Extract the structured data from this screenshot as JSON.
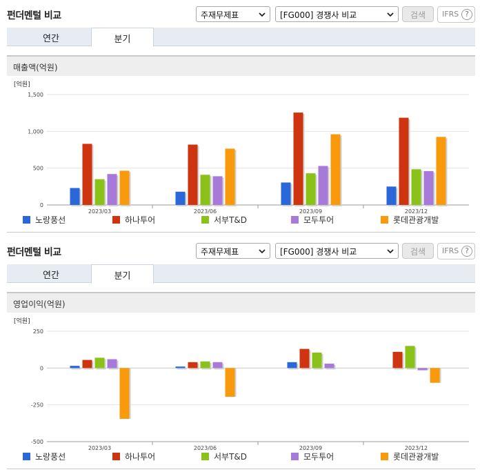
{
  "panels": [
    {
      "title": "펀더멘털 비교",
      "select_1": "주재무제표",
      "select_2": "[FG000] 경쟁사 비교",
      "search_label": "검색",
      "ifrs_label": "IFRS",
      "ifrs_help": "?",
      "tabs": [
        "연간",
        "분기"
      ],
      "section_label": "매출액(억원)"
    },
    {
      "title": "펀더멘털 비교",
      "select_1": "주재무제표",
      "select_2": "[FG000] 경쟁사 비교",
      "search_label": "검색",
      "ifrs_label": "IFRS",
      "ifrs_help": "?",
      "tabs": [
        "연간",
        "분기"
      ],
      "section_label": "영업이익(억원)"
    }
  ],
  "chart_data": [
    {
      "type": "bar",
      "unit": "[억원]",
      "categories": [
        "2023/03",
        "2023/06",
        "2023/09",
        "2023/12"
      ],
      "ylim": [
        0,
        1500
      ],
      "yticks": [
        0,
        500,
        1000,
        1500
      ],
      "ytick_labels": [
        "0",
        "500",
        "1,000",
        "1,500"
      ],
      "series": [
        {
          "name": "노랑풍선",
          "color": "#2a67d8",
          "values": [
            230,
            180,
            305,
            250
          ]
        },
        {
          "name": "하나투어",
          "color": "#cf3411",
          "values": [
            830,
            820,
            1255,
            1185
          ]
        },
        {
          "name": "서부T&D",
          "color": "#8bc21a",
          "values": [
            350,
            410,
            430,
            485
          ]
        },
        {
          "name": "모두투어",
          "color": "#a779d8",
          "values": [
            420,
            390,
            530,
            460
          ]
        },
        {
          "name": "롯데관광개발",
          "color": "#f99a0c",
          "values": [
            465,
            765,
            960,
            925
          ]
        }
      ]
    },
    {
      "type": "bar",
      "unit": "[억원]",
      "categories": [
        "2023/03",
        "2023/06",
        "2023/09",
        "2023/12"
      ],
      "ylim": [
        -500,
        250
      ],
      "yticks": [
        -500,
        -250,
        0,
        250
      ],
      "ytick_labels": [
        "-500",
        "-250",
        "0",
        "250"
      ],
      "series": [
        {
          "name": "노랑풍선",
          "color": "#2a67d8",
          "values": [
            15,
            10,
            40,
            null
          ]
        },
        {
          "name": "하나투어",
          "color": "#cf3411",
          "values": [
            55,
            40,
            130,
            110
          ]
        },
        {
          "name": "서부T&D",
          "color": "#8bc21a",
          "values": [
            70,
            45,
            105,
            150
          ]
        },
        {
          "name": "모두투어",
          "color": "#a779d8",
          "values": [
            60,
            40,
            30,
            -15
          ]
        },
        {
          "name": "롯데관광개발",
          "color": "#f99a0c",
          "values": [
            -345,
            -195,
            null,
            -100
          ]
        }
      ]
    }
  ]
}
